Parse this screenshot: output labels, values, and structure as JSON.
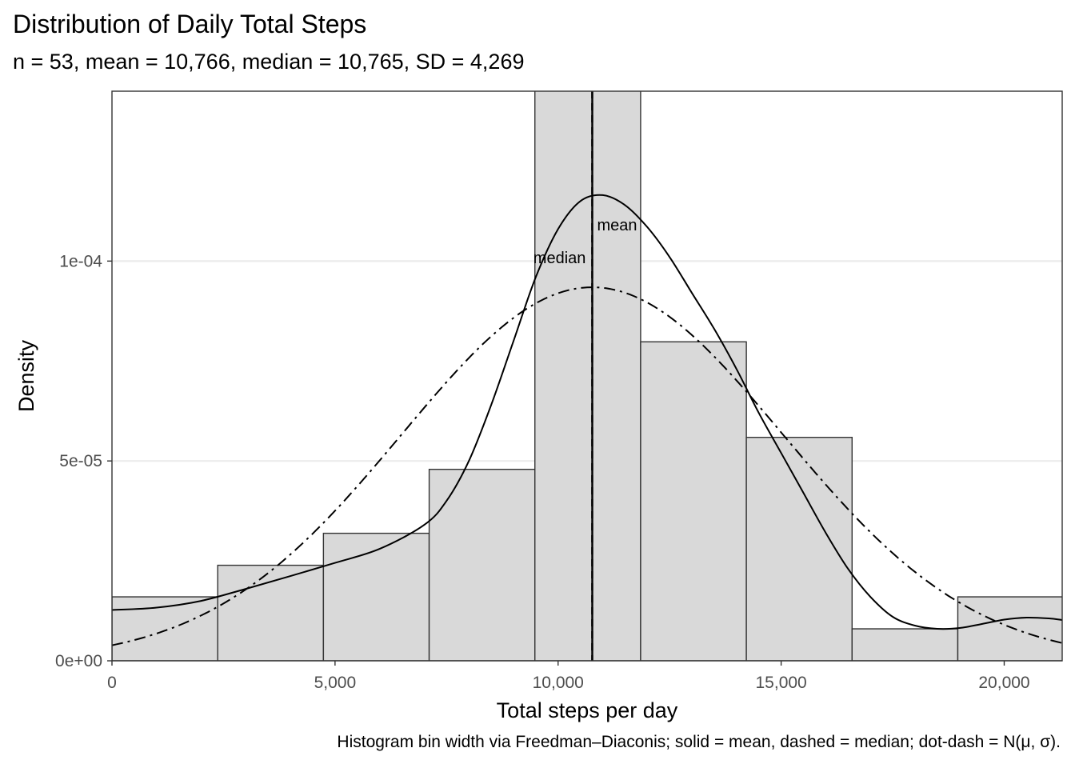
{
  "chart_data": {
    "type": "bar",
    "title": "Distribution of Daily Total Steps",
    "subtitle": "n = 53, mean = 10,766, median = 10,765, SD = 4,269",
    "caption": "Histogram bin width via Freedman–Diaconis; solid = mean, dashed = median; dot-dash = N(μ, σ).",
    "xlabel": "Total steps per day",
    "ylabel": "Density",
    "xlim": [
      0,
      21300
    ],
    "ylim": [
      0,
      0.0001425
    ],
    "x_ticks": [
      0,
      5000,
      10000,
      15000,
      20000
    ],
    "x_tick_labels": [
      "0",
      "5,000",
      "10,000",
      "15,000",
      "20,000"
    ],
    "y_ticks": [
      0,
      5e-05,
      0.0001
    ],
    "y_tick_labels": [
      "0e+00",
      "5e-05",
      "1e-04"
    ],
    "grid": true,
    "bins": [
      {
        "start": 0,
        "end": 2370,
        "density": 1.6e-05
      },
      {
        "start": 2370,
        "end": 4740,
        "density": 2.39e-05
      },
      {
        "start": 4740,
        "end": 7110,
        "density": 3.19e-05
      },
      {
        "start": 7110,
        "end": 9480,
        "density": 4.79e-05
      },
      {
        "start": 9480,
        "end": 11850,
        "density": 0.000149
      },
      {
        "start": 11850,
        "end": 14220,
        "density": 7.98e-05
      },
      {
        "start": 14220,
        "end": 16590,
        "density": 5.59e-05
      },
      {
        "start": 16590,
        "end": 18960,
        "density": 8e-06
      },
      {
        "start": 18960,
        "end": 21330,
        "density": 1.6e-05
      }
    ],
    "kde": {
      "x": [
        0,
        1000,
        2000,
        3000,
        4000,
        5000,
        6000,
        7000,
        7500,
        8000,
        8500,
        9000,
        9500,
        10000,
        10500,
        11000,
        11500,
        12000,
        12500,
        13000,
        13500,
        14000,
        14500,
        15000,
        15500,
        16000,
        16500,
        17000,
        17500,
        18000,
        18500,
        19000,
        19500,
        20000,
        20500,
        21000,
        21300
      ],
      "y": [
        1.27e-05,
        1.33e-05,
        1.5e-05,
        1.8e-05,
        2.12e-05,
        2.45e-05,
        2.8e-05,
        3.4e-05,
        4e-05,
        5e-05,
        6.4e-05,
        8e-05,
        9.6e-05,
        0.000108,
        0.000115,
        0.0001165,
        0.000114,
        0.0001085,
        0.000101,
        9.2e-05,
        8.3e-05,
        7.3e-05,
        6.2e-05,
        5.2e-05,
        4.2e-05,
        3.2e-05,
        2.3e-05,
        1.6e-05,
        1.1e-05,
        8.8e-06,
        8e-06,
        8.2e-06,
        9.2e-06,
        1.03e-05,
        1.08e-05,
        1.06e-05,
        1.02e-05
      ]
    },
    "normal_fit": {
      "mean": 10766,
      "sd": 4269
    },
    "vlines": [
      {
        "label": "mean",
        "x": 10766,
        "style": "solid"
      },
      {
        "label": "median",
        "x": 10765,
        "style": "dashed"
      }
    ]
  }
}
